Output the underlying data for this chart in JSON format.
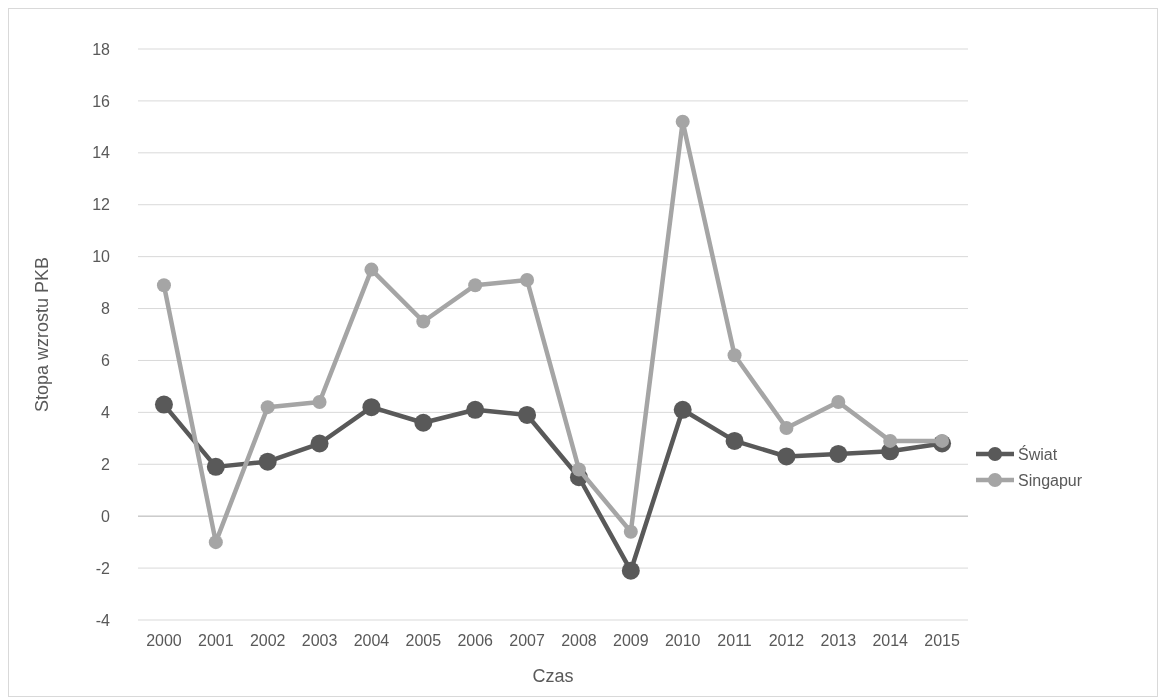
{
  "chart_data": {
    "type": "line",
    "xlabel": "Czas",
    "ylabel": "Stopa wzrostu PKB",
    "categories": [
      "2000",
      "2001",
      "2002",
      "2003",
      "2004",
      "2005",
      "2006",
      "2007",
      "2008",
      "2009",
      "2010",
      "2011",
      "2012",
      "2013",
      "2014",
      "2015"
    ],
    "series": [
      {
        "name": "Świat",
        "color": "#595959",
        "values": [
          4.3,
          1.9,
          2.1,
          2.8,
          4.2,
          3.6,
          4.1,
          3.9,
          1.5,
          -2.1,
          4.1,
          2.9,
          2.3,
          2.4,
          2.5,
          2.8
        ]
      },
      {
        "name": "Singapur",
        "color": "#a5a5a5",
        "values": [
          8.9,
          -1.0,
          4.2,
          4.4,
          9.5,
          7.5,
          8.9,
          9.1,
          1.8,
          -0.6,
          15.2,
          6.2,
          3.4,
          4.4,
          2.9,
          2.9
        ]
      }
    ],
    "ylim": [
      -4,
      18
    ],
    "yticks": [
      -4,
      -2,
      0,
      2,
      4,
      6,
      8,
      10,
      12,
      14,
      16,
      18
    ],
    "grid": "y",
    "legend": "right",
    "marker": "circle",
    "line_style": "solid"
  }
}
